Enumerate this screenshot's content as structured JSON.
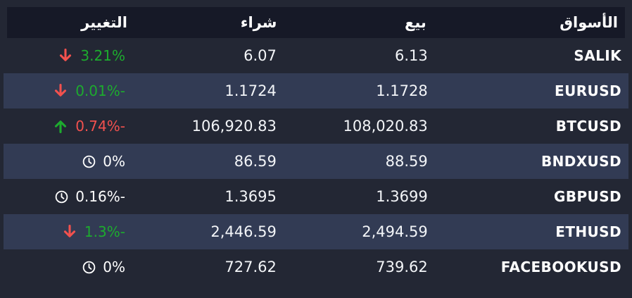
{
  "colors": {
    "green": "#1dab2e",
    "red": "#f2514e",
    "white": "#ffffff",
    "page_bg": "#232734",
    "header_bg": "#161927",
    "row_alt_bg": "#323b54",
    "text": "#f3f5f8"
  },
  "header": {
    "markets": "الأسواق",
    "sell": "بيع",
    "buy": "شراء",
    "change": "التغيير"
  },
  "rows": [
    {
      "symbol": "SALIK",
      "sell": "6.13",
      "buy": "6.07",
      "change": "3.21%",
      "icon": "down-arrow-icon",
      "change_color": "green"
    },
    {
      "symbol": "EURUSD",
      "sell": "1.1728",
      "buy": "1.1724",
      "change": "0.01%-",
      "icon": "down-arrow-icon",
      "change_color": "green"
    },
    {
      "symbol": "BTCUSD",
      "sell": "108,020.83",
      "buy": "106,920.83",
      "change": "0.74%-",
      "icon": "up-arrow-icon",
      "change_color": "red"
    },
    {
      "symbol": "BNDXUSD",
      "sell": "88.59",
      "buy": "86.59",
      "change": "0%",
      "icon": "clock-icon",
      "change_color": "white"
    },
    {
      "symbol": "GBPUSD",
      "sell": "1.3699",
      "buy": "1.3695",
      "change": "0.16%-",
      "icon": "clock-icon",
      "change_color": "white"
    },
    {
      "symbol": "ETHUSD",
      "sell": "2,494.59",
      "buy": "2,446.59",
      "change": "1.3%-",
      "icon": "down-arrow-icon",
      "change_color": "green"
    },
    {
      "symbol": "FACEBOOKUSD",
      "sell": "739.62",
      "buy": "727.62",
      "change": "0%",
      "icon": "clock-icon",
      "change_color": "white"
    }
  ]
}
